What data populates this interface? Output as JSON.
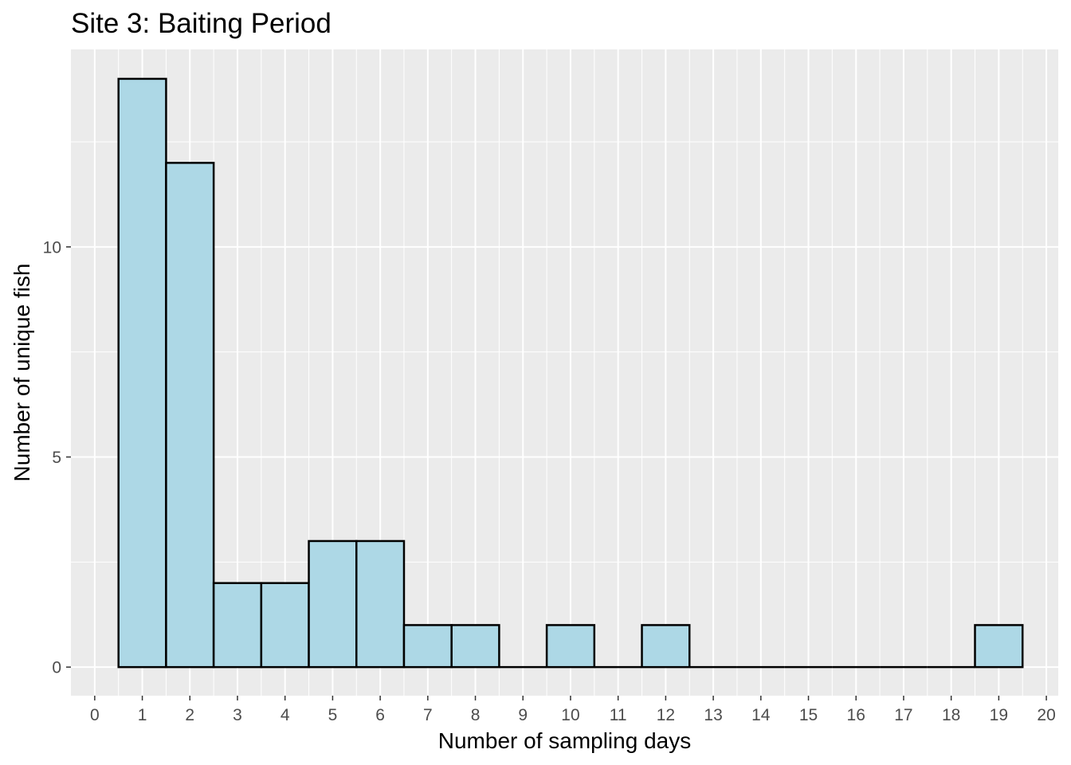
{
  "chart_data": {
    "type": "bar",
    "title": "Site 3: Baiting Period",
    "xlabel": "Number of sampling days",
    "ylabel": "Number of unique fish",
    "xlim": [
      -0.5,
      20.25
    ],
    "ylim": [
      -0.68,
      14.7
    ],
    "x_ticks": [
      "0",
      "1",
      "2",
      "3",
      "4",
      "5",
      "6",
      "7",
      "8",
      "9",
      "10",
      "11",
      "12",
      "13",
      "14",
      "15",
      "16",
      "17",
      "18",
      "19",
      "20"
    ],
    "y_ticks": [
      "0",
      "5",
      "10"
    ],
    "bins": [
      1,
      2,
      3,
      4,
      5,
      6,
      7,
      8,
      9,
      10,
      11,
      12,
      13,
      14,
      15,
      16,
      17,
      18,
      19
    ],
    "values": [
      14,
      12,
      2,
      2,
      3,
      3,
      1,
      1,
      0,
      1,
      0,
      1,
      0,
      0,
      0,
      0,
      0,
      0,
      1
    ],
    "bin_width": 1,
    "fill_color": "#add8e6",
    "stroke_color": "#000000",
    "panel_color": "#ebebeb",
    "grid": true
  }
}
